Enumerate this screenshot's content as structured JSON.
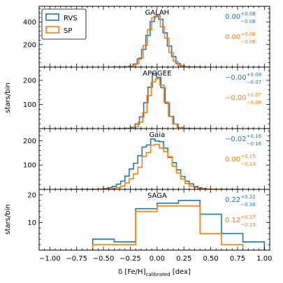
{
  "colors": {
    "RVS": "#1f77b4",
    "SP": "#ff7f0e"
  },
  "chart_data": {
    "type": "histogram",
    "legend": {
      "placement": "top-left",
      "entries": [
        "RVS",
        "SP"
      ]
    },
    "xlabel": {
      "prefix": "δ [Fe/H]",
      "sub": "calibrated",
      "suffix": " [dex]"
    },
    "ylabel": "stars/bin",
    "xlim": [
      -1.1,
      1.05
    ],
    "xticks": [
      -1.0,
      -0.75,
      -0.5,
      -0.25,
      0.0,
      0.25,
      0.5,
      0.75,
      1.0
    ],
    "xtick_labels": [
      "−1.00",
      "−0.75",
      "−0.50",
      "−0.25",
      "0.00",
      "0.25",
      "0.50",
      "0.75",
      "1.00"
    ],
    "panels": [
      {
        "title": "GALAH",
        "ylim": [
          0,
          540
        ],
        "yticks": [
          200,
          400
        ],
        "fine": true,
        "width": 0.04,
        "series": [
          {
            "name": "RVS",
            "amp": 470,
            "mu": 0.0,
            "sigma": 0.085,
            "annotation": {
              "val": "0.00",
              "sup": "+0.08",
              "sub": "−0.08"
            }
          },
          {
            "name": "SP",
            "amp": 455,
            "mu": 0.0,
            "sigma": 0.082,
            "annotation": {
              "val": "0.00",
              "sup": "+0.08",
              "sub": "−0.08"
            }
          }
        ]
      },
      {
        "title": "APOGEE",
        "ylim": [
          0,
          255
        ],
        "yticks": [
          100,
          200
        ],
        "fine": true,
        "width": 0.04,
        "series": [
          {
            "name": "RVS",
            "amp": 225,
            "mu": -0.005,
            "sigma": 0.08,
            "annotation": {
              "val": "−0.00",
              "sup": "+0.09",
              "sub": "−0.07"
            }
          },
          {
            "name": "SP",
            "amp": 215,
            "mu": 0.0,
            "sigma": 0.075,
            "annotation": {
              "val": "−0.00",
              "sup": "+0.07",
              "sub": "−0.08"
            }
          }
        ]
      },
      {
        "title": "Gaia",
        "ylim": [
          0,
          250
        ],
        "yticks": [
          100,
          200
        ],
        "fine": true,
        "width": 0.04,
        "series": [
          {
            "name": "RVS",
            "amp": 205,
            "mu": -0.02,
            "sigma": 0.16,
            "annotation": {
              "val": "−0.02",
              "sup": "+0.16",
              "sub": "−0.16"
            }
          },
          {
            "name": "SP",
            "amp": 185,
            "mu": 0.0,
            "sigma": 0.14,
            "annotation": {
              "val": "0.00",
              "sup": "+0.15",
              "sub": "−0.14"
            }
          }
        ]
      },
      {
        "title": "SAGA",
        "ylim": [
          0,
          22
        ],
        "yticks": [
          10,
          20
        ],
        "fine": false,
        "series": [
          {
            "name": "RVS",
            "edges": [
              -0.6,
              -0.4,
              -0.2,
              0.0,
              0.2,
              0.4,
              0.6,
              0.8,
              1.0
            ],
            "values": [
              4,
              3,
              15,
              17,
              18,
              13,
              6,
              3
            ],
            "annotation": {
              "val": "0.22",
              "sup": "+0.32",
              "sub": "−0.36"
            }
          },
          {
            "name": "SP",
            "edges": [
              -0.6,
              -0.4,
              -0.2,
              0.0,
              0.2,
              0.4,
              0.6,
              0.8
            ],
            "values": [
              2,
              2,
              14,
              16,
              16,
              6,
              2
            ],
            "annotation": {
              "val": "0.12",
              "sup": "+0.37",
              "sub": "−0.23"
            }
          }
        ]
      }
    ]
  }
}
